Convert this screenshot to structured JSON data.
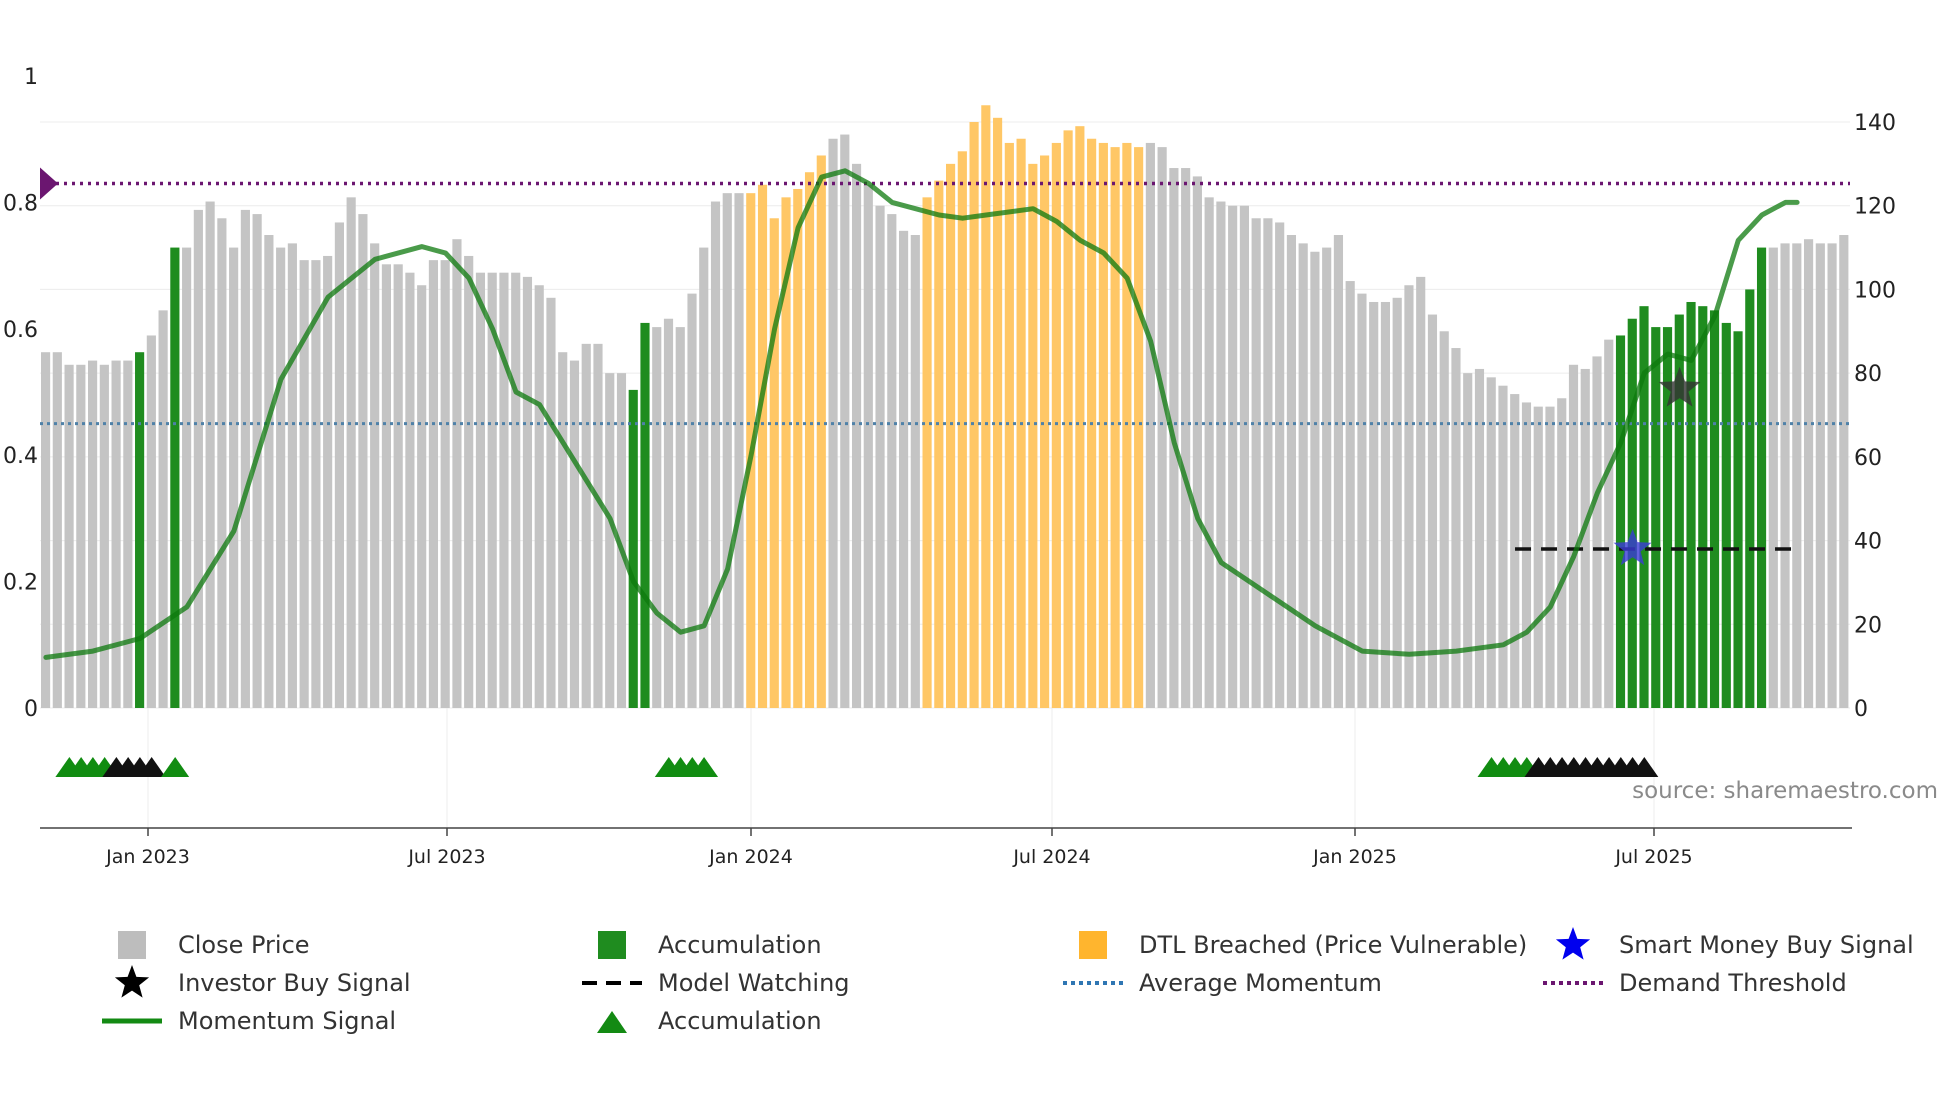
{
  "colors": {
    "close": "#c4c4c4",
    "accumulation": "#1f8c1f",
    "dtl": "#ffc766",
    "momentum": "#0d7a0d",
    "avg_momentum": "#4f81a8",
    "threshold": "#6b1670",
    "investor": "#333333",
    "smart": "#3b3bd6",
    "triangle_green": "#118c11",
    "triangle_black": "#111111",
    "model_watch": "#111111"
  },
  "source": "source: sharemaestro.com",
  "legend": [
    {
      "label": "Close Price",
      "icon": "gray-square-icon"
    },
    {
      "label": "Accumulation",
      "icon": "green-square-icon"
    },
    {
      "label": "DTL Breached (Price Vulnerable)",
      "icon": "orange-square-icon"
    },
    {
      "label": "Smart Money Buy Signal",
      "icon": "blue-star-icon"
    },
    {
      "label": "Investor Buy Signal",
      "icon": "black-star-icon"
    },
    {
      "label": "Model Watching",
      "icon": "dashed-line-icon"
    },
    {
      "label": "Average Momentum",
      "icon": "dotted-blue-line-icon"
    },
    {
      "label": "Demand Threshold",
      "icon": "dotted-purple-line-icon"
    },
    {
      "label": "Momentum Signal",
      "icon": "green-line-icon"
    },
    {
      "label": "Accumulation",
      "icon": "green-triangle-icon"
    }
  ],
  "chart_data": {
    "type": "bar",
    "title": "",
    "x_ticks": [
      "Jan 2023",
      "Jul 2023",
      "Jan 2024",
      "Jul 2024",
      "Jan 2025",
      "Jul 2025"
    ],
    "y_left": {
      "ticks": [
        "0",
        "0.2",
        "0.4",
        "0.6",
        "0.8",
        "1"
      ],
      "range": [
        0,
        1
      ]
    },
    "y_right": {
      "ticks": [
        "0",
        "20",
        "40",
        "60",
        "80",
        "100",
        "120",
        "140"
      ],
      "range": [
        0,
        150
      ]
    },
    "series": [
      {
        "name": "Close Price",
        "axis": "right",
        "values": [
          85,
          85,
          82,
          82,
          83,
          82,
          83,
          83,
          85,
          89,
          95,
          110,
          110,
          119,
          121,
          117,
          110,
          119,
          118,
          113,
          110,
          111,
          107,
          107,
          108,
          116,
          122,
          118,
          111,
          106,
          106,
          104,
          101,
          107,
          107,
          112,
          108,
          104,
          104,
          104,
          104,
          103,
          101,
          98,
          85,
          83,
          87,
          87,
          80,
          80,
          76,
          92,
          91,
          93,
          91,
          99,
          110,
          121,
          123,
          123,
          123,
          125,
          117,
          122,
          124,
          128,
          132,
          136,
          137,
          130,
          125,
          120,
          118,
          114,
          113,
          122,
          126,
          130,
          133,
          140,
          144,
          141,
          135,
          136,
          130,
          132,
          135,
          138,
          139,
          136,
          135,
          134,
          135,
          134,
          135,
          134,
          129,
          129,
          127,
          122,
          121,
          120,
          120,
          117,
          117,
          116,
          113,
          111,
          109,
          110,
          113,
          102,
          99,
          97,
          97,
          98,
          101,
          103,
          94,
          90,
          86,
          80,
          81,
          79,
          77,
          75,
          73,
          72,
          72,
          74,
          82,
          81,
          84,
          88,
          89,
          93,
          96,
          91,
          91,
          94,
          97,
          96,
          95,
          92,
          90,
          100,
          110,
          110,
          111,
          111,
          112,
          111,
          111,
          113
        ],
        "category_codes": "ggggggggcggcggggggggggggggggggggggggggggggggggggggaaggggggggdddddddggggggggdddddddddddddddddddggggggggggggggggggggggggggggggggggggggggaaaaaaaaaaaaagggggggggggg",
        "category_legend": {
          "g": "Close Price",
          "a": "Accumulation",
          "d": "DTL Breached (Price Vulnerable)",
          "c": "Accumulation"
        }
      },
      {
        "name": "Momentum Signal",
        "axis": "left",
        "points": [
          [
            0,
            0.08
          ],
          [
            4,
            0.09
          ],
          [
            8,
            0.11
          ],
          [
            12,
            0.16
          ],
          [
            16,
            0.28
          ],
          [
            20,
            0.52
          ],
          [
            24,
            0.65
          ],
          [
            26,
            0.68
          ],
          [
            28,
            0.71
          ],
          [
            32,
            0.73
          ],
          [
            34,
            0.72
          ],
          [
            36,
            0.68
          ],
          [
            38,
            0.6
          ],
          [
            40,
            0.5
          ],
          [
            42,
            0.48
          ],
          [
            44,
            0.42
          ],
          [
            46,
            0.36
          ],
          [
            48,
            0.3
          ],
          [
            50,
            0.2
          ],
          [
            52,
            0.15
          ],
          [
            54,
            0.12
          ],
          [
            56,
            0.13
          ],
          [
            58,
            0.22
          ],
          [
            60,
            0.4
          ],
          [
            62,
            0.6
          ],
          [
            64,
            0.76
          ],
          [
            66,
            0.84
          ],
          [
            68,
            0.85
          ],
          [
            70,
            0.83
          ],
          [
            72,
            0.8
          ],
          [
            76,
            0.78
          ],
          [
            78,
            0.775
          ],
          [
            80,
            0.78
          ],
          [
            84,
            0.79
          ],
          [
            86,
            0.77
          ],
          [
            88,
            0.74
          ],
          [
            90,
            0.72
          ],
          [
            92,
            0.68
          ],
          [
            94,
            0.58
          ],
          [
            96,
            0.42
          ],
          [
            98,
            0.3
          ],
          [
            100,
            0.23
          ],
          [
            104,
            0.18
          ],
          [
            108,
            0.13
          ],
          [
            112,
            0.09
          ],
          [
            116,
            0.085
          ],
          [
            120,
            0.09
          ],
          [
            124,
            0.1
          ],
          [
            126,
            0.12
          ],
          [
            128,
            0.16
          ],
          [
            130,
            0.24
          ],
          [
            132,
            0.34
          ],
          [
            134,
            0.42
          ],
          [
            136,
            0.53
          ],
          [
            138,
            0.56
          ],
          [
            140,
            0.55
          ],
          [
            142,
            0.62
          ],
          [
            144,
            0.74
          ],
          [
            146,
            0.78
          ],
          [
            148,
            0.8
          ],
          [
            149,
            0.8
          ]
        ]
      },
      {
        "name": "Average Momentum",
        "axis": "left",
        "value": 0.45
      },
      {
        "name": "Demand Threshold",
        "axis": "left",
        "value": 0.83
      },
      {
        "name": "Model Watching",
        "axis": "right",
        "value": 38,
        "x_range": [
          125,
          149
        ]
      },
      {
        "name": "Investor Buy Signal",
        "axis": "left",
        "points": [
          [
            139,
            0.505
          ]
        ]
      },
      {
        "name": "Smart Money Buy Signal",
        "axis": "right",
        "points": [
          [
            135,
            38
          ]
        ]
      },
      {
        "name": "Accumulation",
        "markers": [
          {
            "index": 2,
            "color": "green"
          },
          {
            "index": 3,
            "color": "green"
          },
          {
            "index": 4,
            "color": "green"
          },
          {
            "index": 5,
            "color": "green"
          },
          {
            "index": 6,
            "color": "black"
          },
          {
            "index": 7,
            "color": "black"
          },
          {
            "index": 8,
            "color": "black"
          },
          {
            "index": 9,
            "color": "black"
          },
          {
            "index": 11,
            "color": "green"
          },
          {
            "index": 53,
            "color": "green"
          },
          {
            "index": 54,
            "color": "green"
          },
          {
            "index": 55,
            "color": "green"
          },
          {
            "index": 56,
            "color": "green"
          },
          {
            "index": 123,
            "color": "green"
          },
          {
            "index": 124,
            "color": "green"
          },
          {
            "index": 125,
            "color": "green"
          },
          {
            "index": 126,
            "color": "green"
          },
          {
            "index": 127,
            "color": "black"
          },
          {
            "index": 128,
            "color": "black"
          },
          {
            "index": 129,
            "color": "black"
          },
          {
            "index": 130,
            "color": "black"
          },
          {
            "index": 131,
            "color": "black"
          },
          {
            "index": 132,
            "color": "black"
          },
          {
            "index": 133,
            "color": "black"
          },
          {
            "index": 134,
            "color": "black"
          },
          {
            "index": 135,
            "color": "black"
          },
          {
            "index": 136,
            "color": "black"
          }
        ]
      }
    ],
    "legend_position": "bottom"
  }
}
